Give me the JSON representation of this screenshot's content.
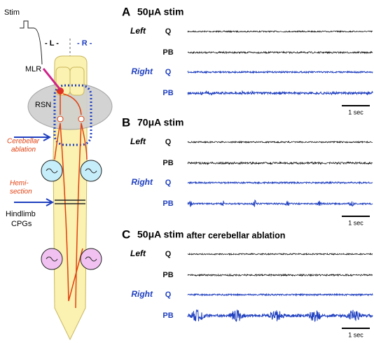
{
  "diagram": {
    "stim": "Stim",
    "left": "- L -",
    "right": "- R -",
    "mlr": "MLR",
    "rsn": "RSN",
    "cerebellar": [
      "Cerebellar",
      "ablation"
    ],
    "hemi": [
      "Hemi-",
      "section"
    ],
    "hindlimb": [
      "Hindlimb",
      "CPGs"
    ]
  },
  "panels": [
    {
      "letter": "A",
      "title": "50μA stim",
      "subtitle": "",
      "scale_bar": "1 sec",
      "left": "Left",
      "right": "Right",
      "rows": [
        "Q",
        "PB",
        "Q",
        "PB"
      ]
    },
    {
      "letter": "B",
      "title": "70μA stim",
      "subtitle": "",
      "scale_bar": "1 sec",
      "left": "Left",
      "right": "Right",
      "rows": [
        "Q",
        "PB",
        "Q",
        "PB"
      ]
    },
    {
      "letter": "C",
      "title": "50μA stim",
      "subtitle": "after cerebellar ablation",
      "scale_bar": "1 sec",
      "left": "Left",
      "right": "Right",
      "rows": [
        "Q",
        "PB",
        "Q",
        "PB"
      ]
    }
  ]
}
